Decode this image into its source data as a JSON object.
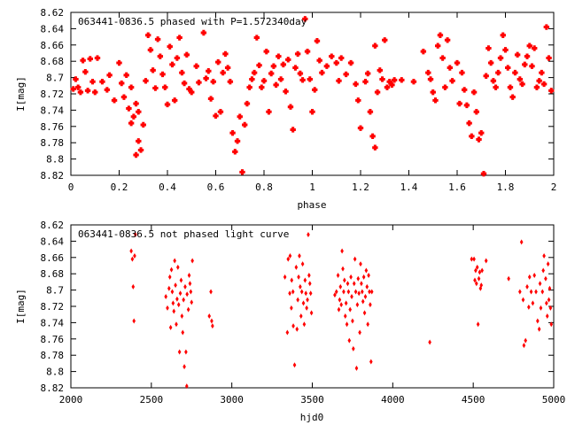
{
  "chart_data": [
    {
      "type": "scatter",
      "title": "063441-0836.5 phased with P=1.572340day",
      "xlabel": "phase",
      "ylabel": "I[mag]",
      "xlim": [
        0,
        2
      ],
      "ylim": [
        8.82,
        8.62
      ],
      "y_inverted": true,
      "grid": false,
      "marker_color": "#ff0000",
      "xticks": [
        "0",
        "0.2",
        "0.4",
        "0.6",
        "0.8",
        "1",
        "1.2",
        "1.4",
        "1.6",
        "1.8",
        "2"
      ],
      "yticks": [
        "8.62",
        "8.64",
        "8.66",
        "8.68",
        "8.7",
        "8.72",
        "8.74",
        "8.76",
        "8.78",
        "8.8",
        "8.82"
      ],
      "points": [
        [
          0.01,
          8.714
        ],
        [
          0.02,
          8.702
        ],
        [
          0.03,
          8.712
        ],
        [
          0.04,
          8.718
        ],
        [
          0.05,
          8.679
        ],
        [
          0.06,
          8.693
        ],
        [
          0.07,
          8.716
        ],
        [
          0.08,
          8.677
        ],
        [
          0.09,
          8.705
        ],
        [
          0.1,
          8.718
        ],
        [
          0.11,
          8.676
        ],
        [
          0.13,
          8.705
        ],
        [
          0.15,
          8.715
        ],
        [
          0.16,
          8.697
        ],
        [
          0.18,
          8.728
        ],
        [
          0.2,
          8.682
        ],
        [
          0.21,
          8.707
        ],
        [
          0.22,
          8.724
        ],
        [
          0.23,
          8.697
        ],
        [
          0.24,
          8.738
        ],
        [
          0.25,
          8.756
        ],
        [
          0.25,
          8.712
        ],
        [
          0.26,
          8.748
        ],
        [
          0.27,
          8.795
        ],
        [
          0.27,
          8.732
        ],
        [
          0.28,
          8.778
        ],
        [
          0.28,
          8.742
        ],
        [
          0.29,
          8.789
        ],
        [
          0.3,
          8.758
        ],
        [
          0.31,
          8.704
        ],
        [
          0.32,
          8.648
        ],
        [
          0.33,
          8.666
        ],
        [
          0.34,
          8.691
        ],
        [
          0.35,
          8.713
        ],
        [
          0.36,
          8.653
        ],
        [
          0.37,
          8.674
        ],
        [
          0.38,
          8.696
        ],
        [
          0.39,
          8.712
        ],
        [
          0.4,
          8.733
        ],
        [
          0.41,
          8.662
        ],
        [
          0.42,
          8.684
        ],
        [
          0.43,
          8.728
        ],
        [
          0.44,
          8.676
        ],
        [
          0.45,
          8.651
        ],
        [
          0.46,
          8.694
        ],
        [
          0.47,
          8.707
        ],
        [
          0.48,
          8.672
        ],
        [
          0.49,
          8.714
        ],
        [
          0.5,
          8.718
        ],
        [
          0.52,
          8.686
        ],
        [
          0.53,
          8.706
        ],
        [
          0.55,
          8.645
        ],
        [
          0.56,
          8.701
        ],
        [
          0.57,
          8.692
        ],
        [
          0.58,
          8.726
        ],
        [
          0.59,
          8.705
        ],
        [
          0.6,
          8.747
        ],
        [
          0.61,
          8.681
        ],
        [
          0.62,
          8.742
        ],
        [
          0.63,
          8.694
        ],
        [
          0.64,
          8.671
        ],
        [
          0.65,
          8.688
        ],
        [
          0.66,
          8.705
        ],
        [
          0.67,
          8.768
        ],
        [
          0.68,
          8.791
        ],
        [
          0.69,
          8.778
        ],
        [
          0.7,
          8.748
        ],
        [
          0.71,
          8.816
        ],
        [
          0.72,
          8.758
        ],
        [
          0.73,
          8.732
        ],
        [
          0.74,
          8.712
        ],
        [
          0.75,
          8.702
        ],
        [
          0.76,
          8.694
        ],
        [
          0.77,
          8.651
        ],
        [
          0.78,
          8.685
        ],
        [
          0.79,
          8.712
        ],
        [
          0.8,
          8.704
        ],
        [
          0.81,
          8.668
        ],
        [
          0.82,
          8.742
        ],
        [
          0.83,
          8.695
        ],
        [
          0.84,
          8.686
        ],
        [
          0.85,
          8.709
        ],
        [
          0.86,
          8.674
        ],
        [
          0.87,
          8.702
        ],
        [
          0.88,
          8.684
        ],
        [
          0.89,
          8.717
        ],
        [
          0.9,
          8.678
        ],
        [
          0.91,
          8.736
        ],
        [
          0.92,
          8.764
        ],
        [
          0.93,
          8.688
        ],
        [
          0.94,
          8.671
        ],
        [
          0.95,
          8.695
        ],
        [
          0.96,
          8.703
        ],
        [
          0.97,
          8.628
        ],
        [
          0.98,
          8.668
        ],
        [
          0.99,
          8.702
        ],
        [
          1.0,
          8.742
        ],
        [
          1.01,
          8.715
        ],
        [
          1.02,
          8.655
        ],
        [
          1.03,
          8.679
        ],
        [
          1.04,
          8.694
        ],
        [
          1.06,
          8.686
        ],
        [
          1.08,
          8.674
        ],
        [
          1.1,
          8.682
        ],
        [
          1.11,
          8.704
        ],
        [
          1.12,
          8.676
        ],
        [
          1.14,
          8.696
        ],
        [
          1.16,
          8.682
        ],
        [
          1.18,
          8.708
        ],
        [
          1.19,
          8.728
        ],
        [
          1.2,
          8.762
        ],
        [
          1.22,
          8.705
        ],
        [
          1.23,
          8.695
        ],
        [
          1.24,
          8.742
        ],
        [
          1.25,
          8.772
        ],
        [
          1.26,
          8.786
        ],
        [
          1.26,
          8.661
        ],
        [
          1.27,
          8.718
        ],
        [
          1.28,
          8.691
        ],
        [
          1.29,
          8.702
        ],
        [
          1.3,
          8.654
        ],
        [
          1.31,
          8.712
        ],
        [
          1.32,
          8.705
        ],
        [
          1.33,
          8.709
        ],
        [
          1.34,
          8.703
        ],
        [
          1.37,
          8.703
        ],
        [
          1.42,
          8.705
        ],
        [
          1.46,
          8.668
        ],
        [
          1.48,
          8.694
        ],
        [
          1.49,
          8.702
        ],
        [
          1.5,
          8.718
        ],
        [
          1.51,
          8.728
        ],
        [
          1.52,
          8.661
        ],
        [
          1.53,
          8.648
        ],
        [
          1.54,
          8.676
        ],
        [
          1.55,
          8.712
        ],
        [
          1.56,
          8.654
        ],
        [
          1.57,
          8.688
        ],
        [
          1.58,
          8.704
        ],
        [
          1.6,
          8.682
        ],
        [
          1.61,
          8.732
        ],
        [
          1.62,
          8.694
        ],
        [
          1.63,
          8.715
        ],
        [
          1.64,
          8.734
        ],
        [
          1.65,
          8.756
        ],
        [
          1.66,
          8.772
        ],
        [
          1.67,
          8.718
        ],
        [
          1.68,
          8.742
        ],
        [
          1.69,
          8.776
        ],
        [
          1.7,
          8.768
        ],
        [
          1.71,
          8.818
        ],
        [
          1.72,
          8.698
        ],
        [
          1.73,
          8.664
        ],
        [
          1.74,
          8.682
        ],
        [
          1.75,
          8.704
        ],
        [
          1.76,
          8.712
        ],
        [
          1.77,
          8.694
        ],
        [
          1.78,
          8.676
        ],
        [
          1.79,
          8.648
        ],
        [
          1.8,
          8.666
        ],
        [
          1.81,
          8.688
        ],
        [
          1.82,
          8.712
        ],
        [
          1.83,
          8.724
        ],
        [
          1.84,
          8.694
        ],
        [
          1.85,
          8.672
        ],
        [
          1.86,
          8.702
        ],
        [
          1.87,
          8.708
        ],
        [
          1.88,
          8.684
        ],
        [
          1.89,
          8.674
        ],
        [
          1.9,
          8.661
        ],
        [
          1.91,
          8.686
        ],
        [
          1.92,
          8.664
        ],
        [
          1.93,
          8.712
        ],
        [
          1.94,
          8.704
        ],
        [
          1.95,
          8.694
        ],
        [
          1.96,
          8.708
        ],
        [
          1.97,
          8.638
        ],
        [
          1.98,
          8.676
        ],
        [
          1.99,
          8.716
        ]
      ]
    },
    {
      "type": "scatter",
      "title": "063441-0836.5 not phased light curve",
      "xlabel": "hjd0",
      "ylabel": "I[mag]",
      "xlim": [
        2000,
        5000
      ],
      "ylim": [
        8.82,
        8.62
      ],
      "y_inverted": true,
      "grid": false,
      "marker_color": "#ff0000",
      "xticks": [
        "2000",
        "2500",
        "3000",
        "3500",
        "4000",
        "4500",
        "5000"
      ],
      "yticks": [
        "8.62",
        "8.64",
        "8.66",
        "8.68",
        "8.7",
        "8.72",
        "8.74",
        "8.76",
        "8.78",
        "8.8",
        "8.82"
      ],
      "points": [
        [
          2375,
          8.652
        ],
        [
          2382,
          8.662
        ],
        [
          2387,
          8.696
        ],
        [
          2392,
          8.738
        ],
        [
          2396,
          8.658
        ],
        [
          2401,
          8.632
        ],
        [
          2590,
          8.708
        ],
        [
          2600,
          8.722
        ],
        [
          2610,
          8.698
        ],
        [
          2615,
          8.684
        ],
        [
          2620,
          8.746
        ],
        [
          2625,
          8.675
        ],
        [
          2630,
          8.702
        ],
        [
          2635,
          8.716
        ],
        [
          2640,
          8.726
        ],
        [
          2645,
          8.664
        ],
        [
          2650,
          8.694
        ],
        [
          2655,
          8.742
        ],
        [
          2660,
          8.711
        ],
        [
          2665,
          8.672
        ],
        [
          2670,
          8.718
        ],
        [
          2675,
          8.776
        ],
        [
          2680,
          8.704
        ],
        [
          2685,
          8.688
        ],
        [
          2690,
          8.732
        ],
        [
          2695,
          8.752
        ],
        [
          2700,
          8.712
        ],
        [
          2705,
          8.794
        ],
        [
          2710,
          8.696
        ],
        [
          2715,
          8.776
        ],
        [
          2720,
          8.818
        ],
        [
          2722,
          8.705
        ],
        [
          2730,
          8.724
        ],
        [
          2735,
          8.682
        ],
        [
          2740,
          8.692
        ],
        [
          2745,
          8.702
        ],
        [
          2750,
          8.715
        ],
        [
          2755,
          8.664
        ],
        [
          2860,
          8.732
        ],
        [
          2870,
          8.702
        ],
        [
          2875,
          8.738
        ],
        [
          2880,
          8.744
        ],
        [
          3330,
          8.684
        ],
        [
          3345,
          8.752
        ],
        [
          3350,
          8.662
        ],
        [
          3360,
          8.704
        ],
        [
          3362,
          8.658
        ],
        [
          3370,
          8.722
        ],
        [
          3372,
          8.688
        ],
        [
          3380,
          8.702
        ],
        [
          3382,
          8.744
        ],
        [
          3390,
          8.792
        ],
        [
          3400,
          8.672
        ],
        [
          3405,
          8.748
        ],
        [
          3410,
          8.712
        ],
        [
          3415,
          8.684
        ],
        [
          3420,
          8.658
        ],
        [
          3425,
          8.696
        ],
        [
          3430,
          8.732
        ],
        [
          3435,
          8.702
        ],
        [
          3440,
          8.668
        ],
        [
          3445,
          8.716
        ],
        [
          3450,
          8.742
        ],
        [
          3455,
          8.688
        ],
        [
          3460,
          8.704
        ],
        [
          3465,
          8.722
        ],
        [
          3470,
          8.712
        ],
        [
          3475,
          8.632
        ],
        [
          3480,
          8.682
        ],
        [
          3485,
          8.692
        ],
        [
          3490,
          8.704
        ],
        [
          3495,
          8.728
        ],
        [
          3640,
          8.706
        ],
        [
          3650,
          8.702
        ],
        [
          3660,
          8.682
        ],
        [
          3665,
          8.724
        ],
        [
          3670,
          8.712
        ],
        [
          3675,
          8.696
        ],
        [
          3680,
          8.718
        ],
        [
          3685,
          8.652
        ],
        [
          3690,
          8.674
        ],
        [
          3695,
          8.702
        ],
        [
          3700,
          8.688
        ],
        [
          3705,
          8.732
        ],
        [
          3710,
          8.716
        ],
        [
          3715,
          8.742
        ],
        [
          3720,
          8.692
        ],
        [
          3725,
          8.702
        ],
        [
          3730,
          8.762
        ],
        [
          3735,
          8.724
        ],
        [
          3740,
          8.684
        ],
        [
          3745,
          8.708
        ],
        [
          3750,
          8.738
        ],
        [
          3755,
          8.772
        ],
        [
          3760,
          8.692
        ],
        [
          3765,
          8.662
        ],
        [
          3770,
          8.702
        ],
        [
          3775,
          8.796
        ],
        [
          3780,
          8.718
        ],
        [
          3785,
          8.686
        ],
        [
          3790,
          8.704
        ],
        [
          3795,
          8.752
        ],
        [
          3800,
          8.668
        ],
        [
          3805,
          8.692
        ],
        [
          3810,
          8.702
        ],
        [
          3815,
          8.714
        ],
        [
          3820,
          8.684
        ],
        [
          3825,
          8.728
        ],
        [
          3830,
          8.708
        ],
        [
          3835,
          8.676
        ],
        [
          3840,
          8.696
        ],
        [
          3845,
          8.742
        ],
        [
          3850,
          8.682
        ],
        [
          3855,
          8.702
        ],
        [
          3860,
          8.718
        ],
        [
          3865,
          8.788
        ],
        [
          3870,
          8.702
        ],
        [
          4230,
          8.764
        ],
        [
          4490,
          8.662
        ],
        [
          4505,
          8.662
        ],
        [
          4510,
          8.688
        ],
        [
          4515,
          8.676
        ],
        [
          4520,
          8.692
        ],
        [
          4525,
          8.672
        ],
        [
          4530,
          8.742
        ],
        [
          4535,
          8.686
        ],
        [
          4540,
          8.678
        ],
        [
          4545,
          8.698
        ],
        [
          4550,
          8.694
        ],
        [
          4555,
          8.676
        ],
        [
          4580,
          8.664
        ],
        [
          4720,
          8.686
        ],
        [
          4790,
          8.702
        ],
        [
          4800,
          8.641
        ],
        [
          4810,
          8.712
        ],
        [
          4815,
          8.768
        ],
        [
          4825,
          8.762
        ],
        [
          4835,
          8.696
        ],
        [
          4845,
          8.721
        ],
        [
          4850,
          8.684
        ],
        [
          4860,
          8.702
        ],
        [
          4870,
          8.716
        ],
        [
          4880,
          8.682
        ],
        [
          4890,
          8.702
        ],
        [
          4900,
          8.738
        ],
        [
          4910,
          8.748
        ],
        [
          4915,
          8.692
        ],
        [
          4920,
          8.722
        ],
        [
          4930,
          8.702
        ],
        [
          4935,
          8.676
        ],
        [
          4940,
          8.658
        ],
        [
          4950,
          8.686
        ],
        [
          4955,
          8.716
        ],
        [
          4960,
          8.732
        ],
        [
          4965,
          8.668
        ],
        [
          4970,
          8.712
        ],
        [
          4975,
          8.698
        ],
        [
          4980,
          8.722
        ],
        [
          4985,
          8.742
        ]
      ]
    }
  ]
}
